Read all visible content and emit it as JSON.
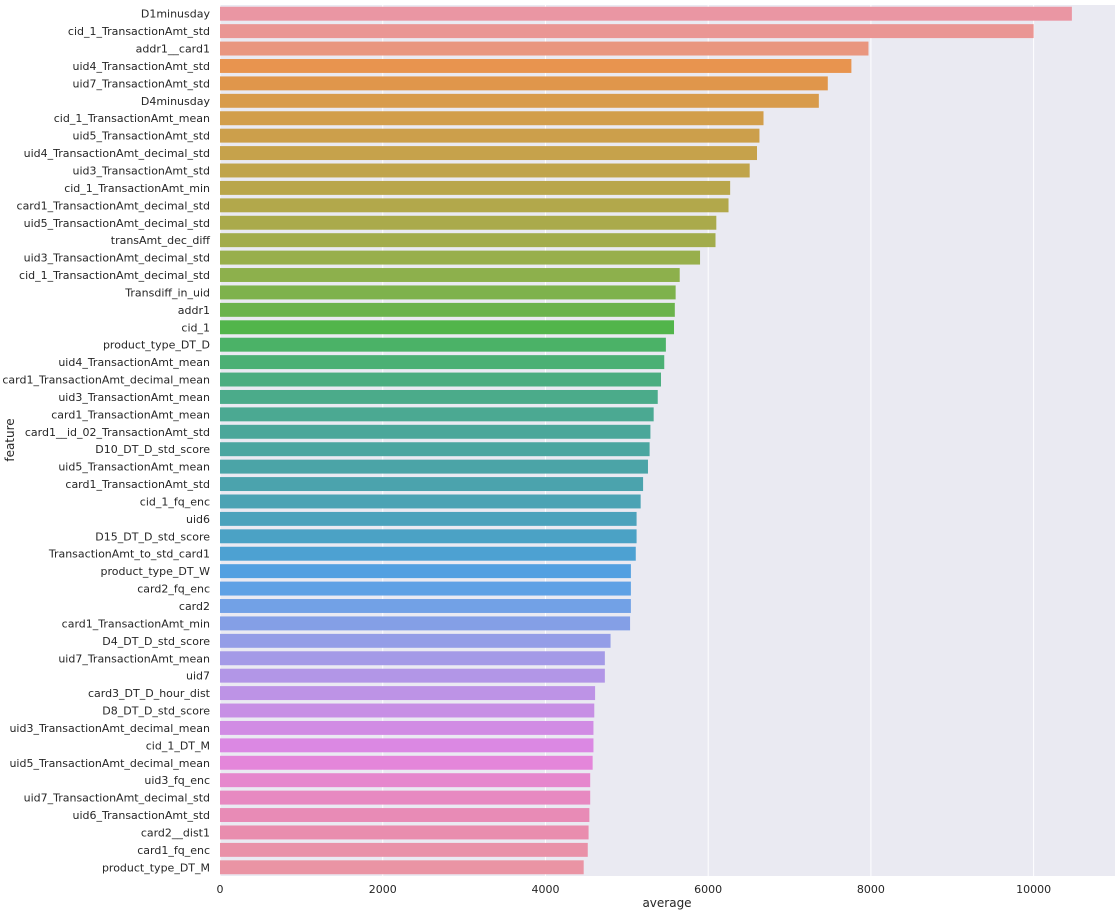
{
  "chart_data": {
    "type": "bar",
    "orientation": "horizontal",
    "xlabel": "average",
    "ylabel": "feature",
    "xlim": [
      0,
      11000
    ],
    "x_ticks": [
      0,
      2000,
      4000,
      6000,
      8000,
      10000
    ],
    "grid": true,
    "categories": [
      "D1minusday",
      "cid_1_TransactionAmt_std",
      "addr1__card1",
      "uid4_TransactionAmt_std",
      "uid7_TransactionAmt_std",
      "D4minusday",
      "cid_1_TransactionAmt_mean",
      "uid5_TransactionAmt_std",
      "uid4_TransactionAmt_decimal_std",
      "uid3_TransactionAmt_std",
      "cid_1_TransactionAmt_min",
      "card1_TransactionAmt_decimal_std",
      "uid5_TransactionAmt_decimal_std",
      "transAmt_dec_diff",
      "uid3_TransactionAmt_decimal_std",
      "cid_1_TransactionAmt_decimal_std",
      "Transdiff_in_uid",
      "addr1",
      "cid_1",
      "product_type_DT_D",
      "uid4_TransactionAmt_mean",
      "card1_TransactionAmt_decimal_mean",
      "uid3_TransactionAmt_mean",
      "card1_TransactionAmt_mean",
      "card1__id_02_TransactionAmt_std",
      "D10_DT_D_std_score",
      "uid5_TransactionAmt_mean",
      "card1_TransactionAmt_std",
      "cid_1_fq_enc",
      "uid6",
      "D15_DT_D_std_score",
      "TransactionAmt_to_std_card1",
      "product_type_DT_W",
      "card2_fq_enc",
      "card2",
      "card1_TransactionAmt_min",
      "D4_DT_D_std_score",
      "uid7_TransactionAmt_mean",
      "uid7",
      "card3_DT_D_hour_dist",
      "D8_DT_D_std_score",
      "uid3_TransactionAmt_decimal_mean",
      "cid_1_DT_M",
      "uid5_TransactionAmt_decimal_mean",
      "uid3_fq_enc",
      "uid7_TransactionAmt_decimal_std",
      "uid6_TransactionAmt_std",
      "card2__dist1",
      "card1_fq_enc",
      "product_type_DT_M"
    ],
    "values": [
      10470,
      10000,
      7970,
      7760,
      7470,
      7360,
      6680,
      6630,
      6600,
      6510,
      6270,
      6250,
      6100,
      6090,
      5900,
      5650,
      5600,
      5590,
      5580,
      5480,
      5460,
      5420,
      5380,
      5330,
      5290,
      5280,
      5260,
      5200,
      5170,
      5120,
      5120,
      5110,
      5050,
      5050,
      5050,
      5040,
      4800,
      4730,
      4730,
      4610,
      4600,
      4590,
      4590,
      4580,
      4550,
      4550,
      4540,
      4530,
      4520,
      4470
    ],
    "colors": [
      "#ea96a3",
      "#ea9694",
      "#e9967f",
      "#e8944f",
      "#e0964b",
      "#d89b4b",
      "#d29e4b",
      "#cc9f4b",
      "#c6a24b",
      "#c0a44b",
      "#b9a64b",
      "#b2a84b",
      "#aaaa4b",
      "#a2ac4b",
      "#98af4c",
      "#8db04c",
      "#7eb24c",
      "#6bb34c",
      "#52b54b",
      "#4bb267",
      "#4bb074",
      "#4bad80",
      "#4bab8a",
      "#4ba992",
      "#4ba79a",
      "#4ba6a0",
      "#4ba4a7",
      "#4ba3ad",
      "#4ba3b4",
      "#4ba2bc",
      "#4ba2c5",
      "#4da1d2",
      "#52a0e1",
      "#5fa1e5",
      "#72a1e6",
      "#849fe6",
      "#949de7",
      "#a49ae7",
      "#b296e7",
      "#bd93e6",
      "#c78fe5",
      "#d18ce4",
      "#db88e3",
      "#e486da",
      "#e687cd",
      "#e789c1",
      "#e88bb6",
      "#e98dae",
      "#e991a8",
      "#ea94a4"
    ]
  }
}
